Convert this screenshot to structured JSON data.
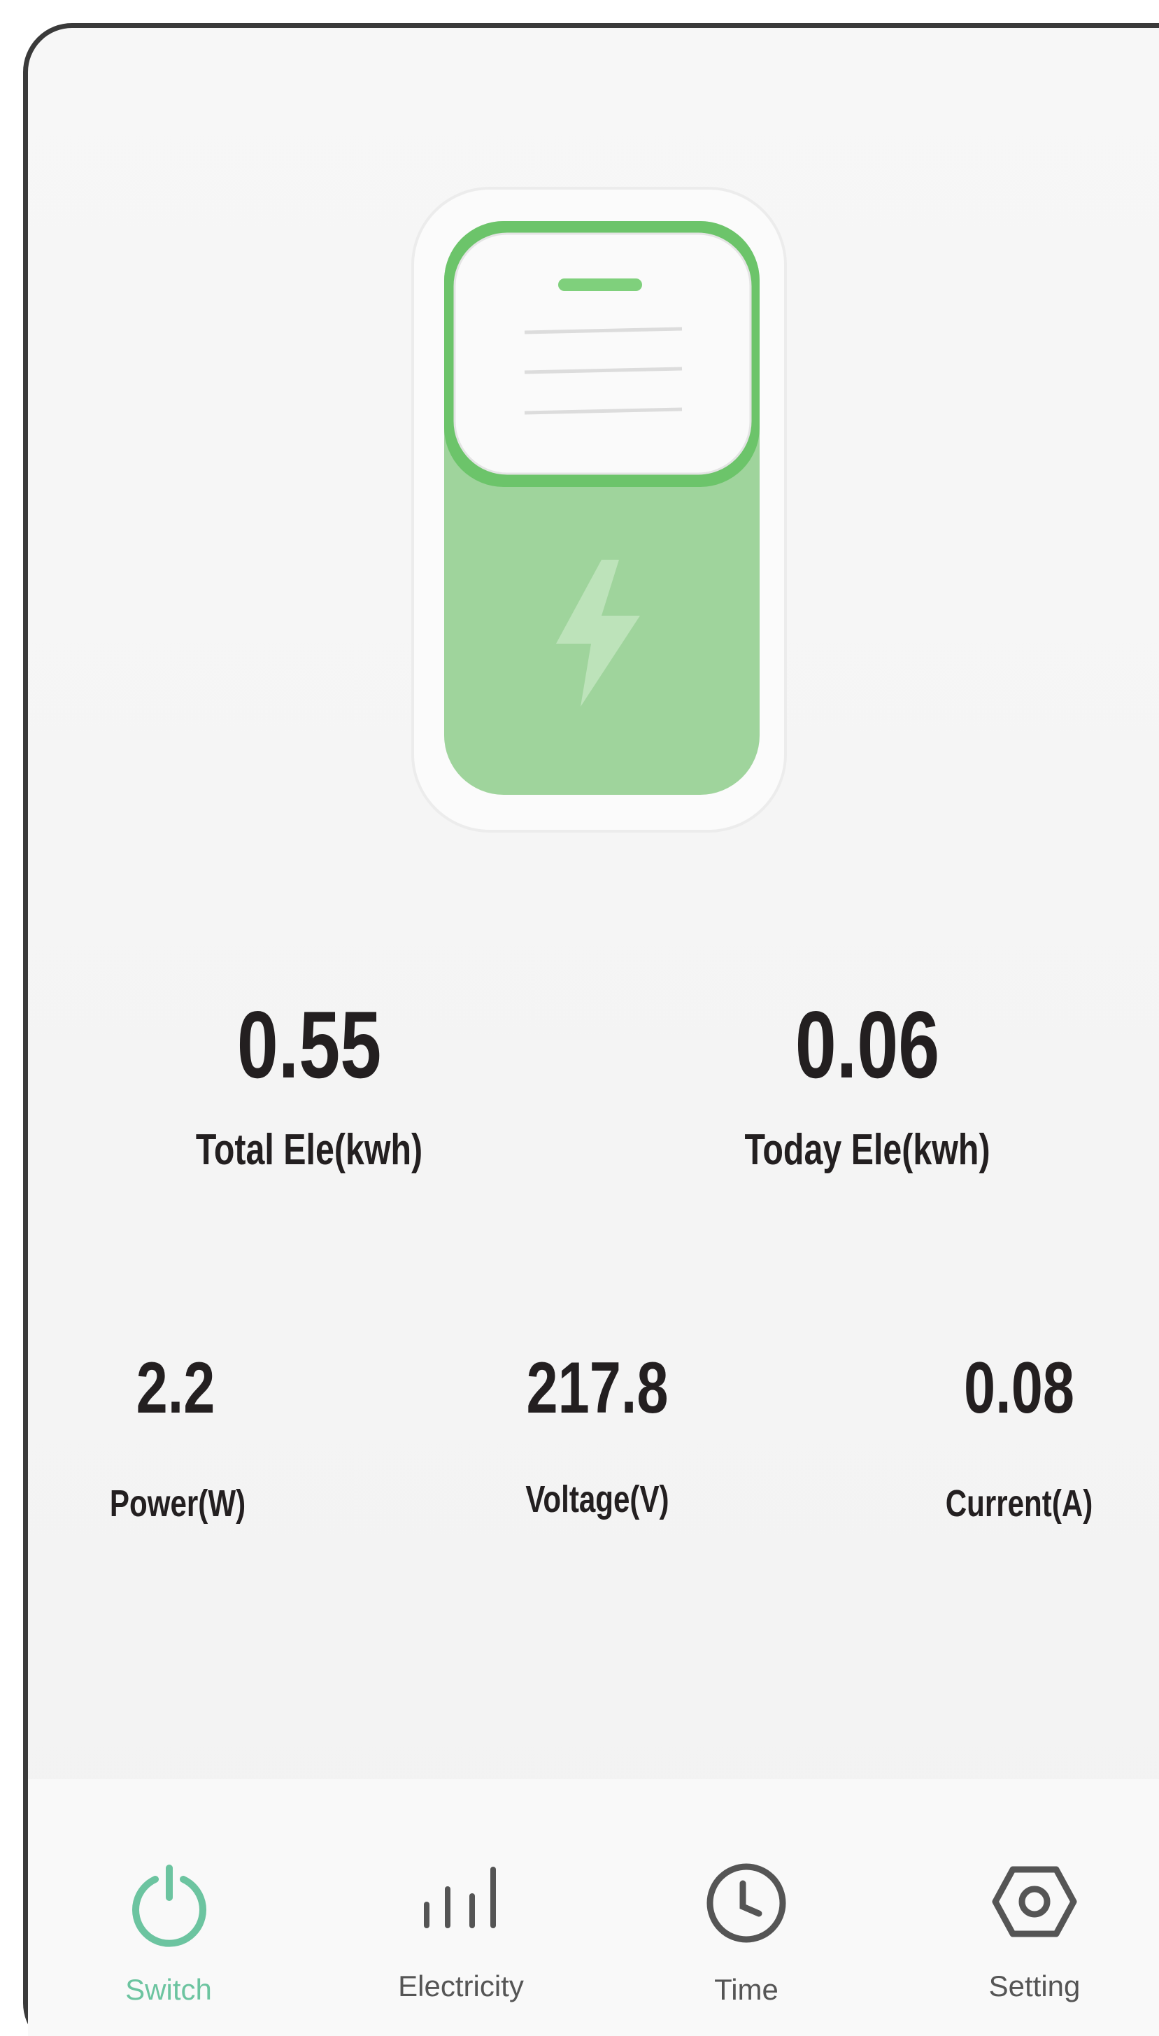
{
  "totals": [
    {
      "value": "0.55",
      "label": "Total Ele(kwh)"
    },
    {
      "value": "0.06",
      "label": "Today Ele(kwh)"
    }
  ],
  "metrics": [
    {
      "value": "2.2",
      "label": "Power(W)"
    },
    {
      "value": "217.8",
      "label": "Voltage(V)"
    },
    {
      "value": "0.08",
      "label": "Current(A)"
    }
  ],
  "nav": [
    {
      "label": "Switch",
      "active": true
    },
    {
      "label": "Electricity",
      "active": false
    },
    {
      "label": "Time",
      "active": false
    },
    {
      "label": "Setting",
      "active": false
    }
  ]
}
